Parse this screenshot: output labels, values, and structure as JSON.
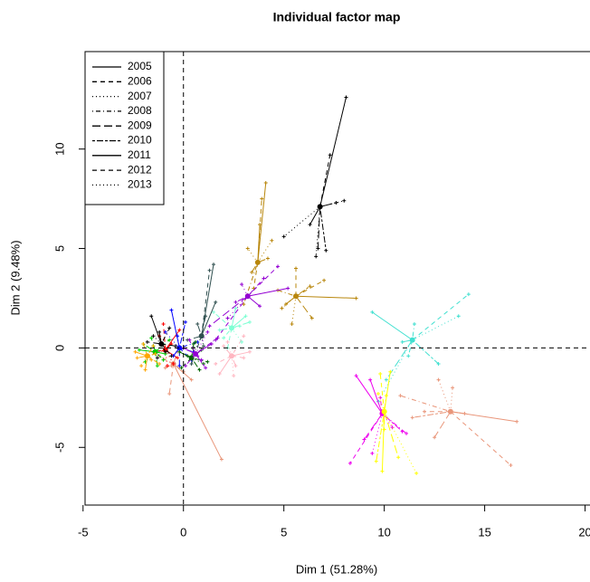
{
  "chart_data": {
    "type": "partial-scatter",
    "title": "Individual factor map",
    "xlabel": "Dim 1 (51.28%)",
    "ylabel": "Dim 2 (9.48%)",
    "xlim": [
      -4.9,
      20.2
    ],
    "ylim": [
      -7.9,
      14.9
    ],
    "xticks": [
      -5,
      0,
      5,
      10,
      15,
      20
    ],
    "yticks": [
      -5,
      0,
      5,
      10
    ],
    "reference_lines": true,
    "legend_position": "topleft",
    "years": [
      {
        "name": "2005",
        "dash": "solid"
      },
      {
        "name": "2006",
        "dash": "dashed"
      },
      {
        "name": "2007",
        "dash": "dotted"
      },
      {
        "name": "2008",
        "dash": "dotdash"
      },
      {
        "name": "2009",
        "dash": "longdash"
      },
      {
        "name": "2010",
        "dash": "twodash"
      },
      {
        "name": "2011",
        "dash": "solid"
      },
      {
        "name": "2012",
        "dash": "dashed"
      },
      {
        "name": "2013",
        "dash": "dotted"
      }
    ],
    "groups": [
      {
        "color": "#000000",
        "center_x": 6.8,
        "center_y": 7.1,
        "x": [
          8.1,
          7.3,
          5.0,
          8.0,
          6.7,
          7.1,
          6.3,
          7.6,
          6.6
        ],
        "y": [
          12.6,
          9.7,
          5.6,
          7.4,
          5.0,
          4.9,
          6.2,
          7.3,
          4.6
        ]
      },
      {
        "color": "#40e0d0",
        "center_x": 11.4,
        "center_y": 0.4,
        "x": [
          9.4,
          14.2,
          13.7,
          11.5,
          10.1,
          12.7,
          10.9,
          11.2,
          9.7
        ],
        "y": [
          1.8,
          2.7,
          1.6,
          1.2,
          -1.6,
          -0.8,
          0.3,
          -0.4,
          -2.7
        ]
      },
      {
        "color": "#e9967a",
        "center_x": 13.3,
        "center_y": -3.2,
        "x": [
          16.6,
          16.3,
          12.7,
          10.8,
          12.5,
          11.4,
          14.0,
          12.0,
          13.4
        ],
        "y": [
          -3.7,
          -5.9,
          -1.6,
          -2.4,
          -4.5,
          -3.5,
          -3.3,
          -3.2,
          -2.0
        ]
      },
      {
        "color": "#ee00ee",
        "center_x": 9.9,
        "center_y": -3.3,
        "x": [
          8.6,
          8.3,
          10.4,
          11.1,
          9.0,
          10.9,
          9.3,
          9.8,
          9.4
        ],
        "y": [
          -1.4,
          -5.8,
          -4.0,
          -4.3,
          -4.6,
          -4.2,
          -1.6,
          -2.5,
          -5.3
        ]
      },
      {
        "color": "#ffff00",
        "center_x": 10.0,
        "center_y": -3.2,
        "x": [
          9.9,
          9.8,
          11.6,
          10.1,
          10.7,
          9.6,
          10.3,
          10.0,
          9.7
        ],
        "y": [
          -6.2,
          -1.3,
          -6.3,
          -2.4,
          -5.5,
          -5.7,
          -1.2,
          -4.1,
          -2.3
        ]
      },
      {
        "color": "#b8860b",
        "center_x": 3.7,
        "center_y": 4.3,
        "x": [
          4.1,
          3.9,
          3.2,
          3.0,
          4.2,
          3.4,
          3.8,
          3.5,
          4.4
        ],
        "y": [
          8.3,
          7.5,
          5.0,
          2.2,
          4.5,
          3.8,
          6.2,
          3.0,
          5.4
        ]
      },
      {
        "color": "#b8860b",
        "center_x": 5.6,
        "center_y": 2.6,
        "x": [
          8.6,
          7.0,
          5.4,
          4.7,
          6.4,
          6.3,
          5.1,
          5.6,
          4.9
        ],
        "y": [
          2.5,
          3.4,
          1.2,
          2.9,
          1.5,
          3.1,
          2.2,
          4.0,
          2.0
        ]
      },
      {
        "color": "#9400d3",
        "center_x": 3.2,
        "center_y": 2.6,
        "x": [
          5.2,
          4.7,
          2.2,
          4.0,
          1.3,
          2.6,
          3.8,
          1.6,
          2.9
        ],
        "y": [
          3.0,
          4.1,
          1.5,
          3.5,
          1.1,
          2.3,
          2.1,
          0.4,
          3.2
        ]
      },
      {
        "color": "#ffb6c1",
        "center_x": 2.4,
        "center_y": -0.4,
        "x": [
          3.3,
          1.6,
          2.5,
          3.0,
          2.0,
          2.6,
          1.8,
          3.0,
          2.2
        ],
        "y": [
          -0.2,
          -0.8,
          -1.4,
          0.6,
          0.1,
          -0.9,
          -1.3,
          -0.5,
          0.3
        ]
      },
      {
        "color": "#7fffd4",
        "center_x": 2.4,
        "center_y": 1.0,
        "x": [
          3.1,
          1.5,
          2.9,
          2.0,
          3.3,
          1.8,
          2.6,
          2.2,
          2.8
        ],
        "y": [
          1.6,
          1.8,
          0.3,
          0.5,
          1.3,
          0.9,
          2.0,
          0.0,
          1.1
        ]
      },
      {
        "color": "#e9967a",
        "center_x": -0.5,
        "center_y": -0.8,
        "x": [
          1.9,
          -0.7,
          -1.0,
          0.0,
          -0.3,
          -0.9,
          0.4,
          -1.2,
          -0.6
        ],
        "y": [
          -5.6,
          -2.3,
          -0.6,
          -1.2,
          -0.2,
          -1.0,
          -1.6,
          -0.4,
          -0.9
        ]
      },
      {
        "color": "#2f4f4f",
        "center_x": 0.9,
        "center_y": 0.6,
        "x": [
          1.5,
          1.3,
          0.5,
          1.1,
          0.2,
          0.7,
          1.6,
          0.4,
          1.0
        ],
        "y": [
          4.2,
          3.9,
          -0.3,
          1.6,
          0.4,
          1.2,
          2.3,
          -0.8,
          0.1
        ]
      },
      {
        "color": "#ff0000",
        "center_x": -0.9,
        "center_y": -0.1,
        "x": [
          -0.2,
          -1.8,
          -0.5,
          -1.2,
          -0.6,
          -1.5,
          -0.3,
          -1.0,
          -0.8
        ],
        "y": [
          0.9,
          -0.4,
          -0.8,
          0.6,
          0.2,
          -0.2,
          -0.5,
          1.2,
          -0.9
        ]
      },
      {
        "color": "#00cd00",
        "center_x": -1.4,
        "center_y": -0.2,
        "x": [
          -2.2,
          -0.7,
          -1.9,
          -1.0,
          -1.6,
          -2.0,
          -0.9,
          -1.3,
          -1.5
        ],
        "y": [
          -0.1,
          0.4,
          -0.7,
          -0.6,
          0.5,
          0.2,
          -0.3,
          -0.9,
          0.1
        ]
      },
      {
        "color": "#0000ff",
        "center_x": -0.2,
        "center_y": 0.0,
        "x": [
          -0.6,
          0.4,
          -0.9,
          0.7,
          -0.2,
          0.1,
          -0.5,
          0.5,
          -0.3
        ],
        "y": [
          1.9,
          -0.6,
          0.8,
          0.3,
          -0.9,
          1.3,
          -0.4,
          -0.2,
          0.6
        ]
      },
      {
        "color": "#ffa500",
        "center_x": -1.8,
        "center_y": -0.4,
        "x": [
          -2.4,
          -1.2,
          -2.1,
          -1.5,
          -2.3,
          -1.4,
          -1.9,
          -2.0,
          -1.6
        ],
        "y": [
          -0.2,
          -0.8,
          -0.9,
          0.1,
          -0.5,
          -0.3,
          -1.1,
          0.2,
          -0.6
        ]
      },
      {
        "color": "#006400",
        "center_x": 0.4,
        "center_y": -0.5,
        "x": [
          0.9,
          -0.1,
          0.6,
          1.2,
          0.2,
          0.8,
          -0.2,
          0.5,
          1.0
        ],
        "y": [
          -0.1,
          -1.0,
          0.3,
          -0.7,
          -0.4,
          -1.1,
          -0.2,
          0.2,
          -0.8
        ]
      },
      {
        "color": "#000000",
        "center_x": -1.1,
        "center_y": 0.2,
        "x": [
          -1.6,
          -0.4,
          -1.3,
          -0.7,
          -1.8,
          -0.9,
          -1.2,
          -0.6,
          -1.5
        ],
        "y": [
          1.6,
          0.1,
          -0.5,
          1.0,
          0.3,
          -0.2,
          0.8,
          -0.4,
          0.6
        ]
      },
      {
        "color": "#9400d3",
        "center_x": 0.6,
        "center_y": -0.3,
        "x": [
          1.4,
          0.1,
          0.9,
          1.7,
          0.3,
          1.1,
          0.0,
          0.7,
          1.2
        ],
        "y": [
          0.2,
          -0.9,
          -0.6,
          0.5,
          0.4,
          -1.0,
          0.0,
          -0.4,
          0.8
        ]
      }
    ]
  }
}
